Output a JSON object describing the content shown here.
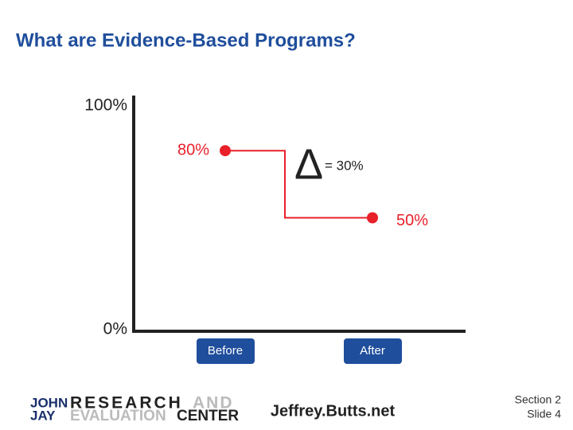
{
  "title": "What are Evidence-Based Programs?",
  "chart_data": {
    "type": "step",
    "categories": [
      "Before",
      "After"
    ],
    "values": [
      80,
      50
    ],
    "value_labels": [
      "80%",
      "50%"
    ],
    "color": "#e8202a",
    "ylim": [
      0,
      100
    ],
    "yticks": [
      {
        "value": 0,
        "label": "0%"
      },
      {
        "value": 100,
        "label": "100%"
      }
    ],
    "delta_symbol": "Δ",
    "annotation": "= 30%"
  },
  "footer": {
    "logo": [
      "JOHN",
      "JAY",
      "RESEARCH",
      "AND",
      "EVALUATION",
      "CENTER"
    ],
    "website": "Jeffrey.Butts.net",
    "section": "Section 2",
    "slide": "Slide 4"
  }
}
